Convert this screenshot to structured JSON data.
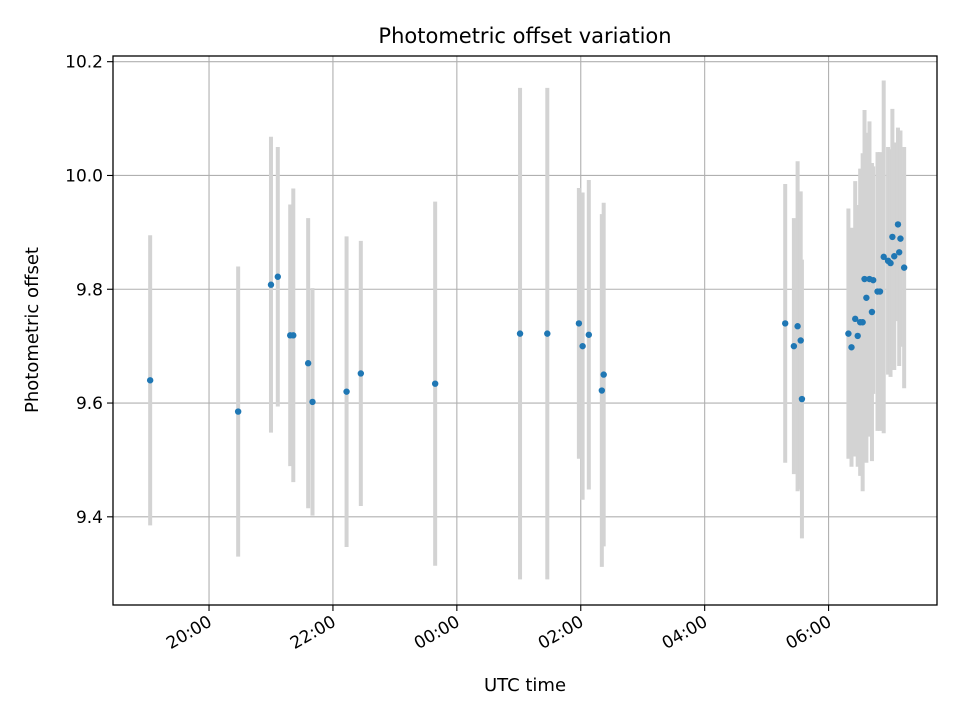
{
  "chart_data": {
    "type": "scatter",
    "title": "Photometric offset variation",
    "xlabel": "UTC time",
    "ylabel": "Photometric offset",
    "x_unit": "hours",
    "xlim": [
      -5.55,
      7.75
    ],
    "ylim": [
      9.245,
      10.21
    ],
    "x_ticks": [
      {
        "value": -4,
        "label": "20:00"
      },
      {
        "value": -2,
        "label": "22:00"
      },
      {
        "value": 0,
        "label": "00:00"
      },
      {
        "value": 2,
        "label": "02:00"
      },
      {
        "value": 4,
        "label": "04:00"
      },
      {
        "value": 6,
        "label": "06:00"
      }
    ],
    "y_ticks": [
      {
        "value": 9.4,
        "label": "9.4"
      },
      {
        "value": 9.6,
        "label": "9.6"
      },
      {
        "value": 9.8,
        "label": "9.8"
      },
      {
        "value": 10.0,
        "label": "10.0"
      },
      {
        "value": 10.2,
        "label": "10.2"
      }
    ],
    "grid": true,
    "point_color": "#1f77b4",
    "errorbar_color": "#d3d3d3",
    "points": [
      {
        "x": -4.95,
        "y": 9.64,
        "yerr": 0.255
      },
      {
        "x": -3.53,
        "y": 9.585,
        "yerr": 0.255
      },
      {
        "x": -3.0,
        "y": 9.808,
        "yerr": 0.26
      },
      {
        "x": -2.89,
        "y": 9.822,
        "yerr": 0.228
      },
      {
        "x": -2.69,
        "y": 9.719,
        "yerr": 0.23
      },
      {
        "x": -2.64,
        "y": 9.719,
        "yerr": 0.258
      },
      {
        "x": -2.4,
        "y": 9.67,
        "yerr": 0.255
      },
      {
        "x": -2.33,
        "y": 9.602,
        "yerr": 0.2
      },
      {
        "x": -1.78,
        "y": 9.62,
        "yerr": 0.273
      },
      {
        "x": -1.55,
        "y": 9.652,
        "yerr": 0.233
      },
      {
        "x": -0.35,
        "y": 9.634,
        "yerr": 0.32
      },
      {
        "x": 1.02,
        "y": 9.722,
        "yerr": 0.432
      },
      {
        "x": 1.46,
        "y": 9.722,
        "yerr": 0.432
      },
      {
        "x": 1.97,
        "y": 9.74,
        "yerr": 0.238
      },
      {
        "x": 2.03,
        "y": 9.7,
        "yerr": 0.27
      },
      {
        "x": 2.13,
        "y": 9.72,
        "yerr": 0.272
      },
      {
        "x": 2.34,
        "y": 9.622,
        "yerr": 0.31
      },
      {
        "x": 2.37,
        "y": 9.65,
        "yerr": 0.302
      },
      {
        "x": 5.3,
        "y": 9.74,
        "yerr": 0.245
      },
      {
        "x": 5.44,
        "y": 9.7,
        "yerr": 0.225
      },
      {
        "x": 5.5,
        "y": 9.735,
        "yerr": 0.29
      },
      {
        "x": 5.55,
        "y": 9.71,
        "yerr": 0.262
      },
      {
        "x": 5.57,
        "y": 9.607,
        "yerr": 0.245
      },
      {
        "x": 6.32,
        "y": 9.722,
        "yerr": 0.22
      },
      {
        "x": 6.37,
        "y": 9.698,
        "yerr": 0.21
      },
      {
        "x": 6.43,
        "y": 9.748,
        "yerr": 0.242
      },
      {
        "x": 6.47,
        "y": 9.718,
        "yerr": 0.23
      },
      {
        "x": 6.51,
        "y": 9.742,
        "yerr": 0.27
      },
      {
        "x": 6.55,
        "y": 9.742,
        "yerr": 0.297
      },
      {
        "x": 6.58,
        "y": 9.818,
        "yerr": 0.297
      },
      {
        "x": 6.61,
        "y": 9.785,
        "yerr": 0.29
      },
      {
        "x": 6.66,
        "y": 9.818,
        "yerr": 0.277
      },
      {
        "x": 6.7,
        "y": 9.76,
        "yerr": 0.262
      },
      {
        "x": 6.72,
        "y": 9.816,
        "yerr": 0.2
      },
      {
        "x": 6.79,
        "y": 9.796,
        "yerr": 0.245
      },
      {
        "x": 6.83,
        "y": 9.796,
        "yerr": 0.245
      },
      {
        "x": 6.89,
        "y": 9.857,
        "yerr": 0.31
      },
      {
        "x": 6.96,
        "y": 9.85,
        "yerr": 0.2
      },
      {
        "x": 7.0,
        "y": 9.846,
        "yerr": 0.2
      },
      {
        "x": 7.03,
        "y": 9.892,
        "yerr": 0.225
      },
      {
        "x": 7.06,
        "y": 9.858,
        "yerr": 0.2
      },
      {
        "x": 7.12,
        "y": 9.914,
        "yerr": 0.17
      },
      {
        "x": 7.14,
        "y": 9.865,
        "yerr": 0.2
      },
      {
        "x": 7.16,
        "y": 9.889,
        "yerr": 0.19
      },
      {
        "x": 7.22,
        "y": 9.838,
        "yerr": 0.212
      }
    ]
  }
}
